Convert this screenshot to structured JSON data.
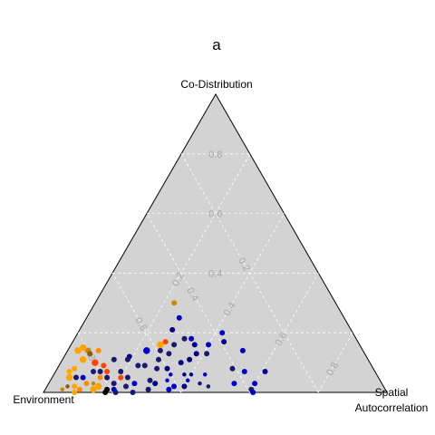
{
  "chart_data": {
    "type": "scatter",
    "subtype": "ternary",
    "title": "a",
    "vertex_labels": {
      "top": "Co-Distribution",
      "left": "Environment",
      "right_line1": "Spatial",
      "right_line2": "Autocorrelation"
    },
    "axes": {
      "co_distribution_ticks": [
        "0.4",
        "0.6",
        "0.8"
      ],
      "spatial_ticks": [
        "0.2",
        "0.4",
        "0.6",
        "0.8"
      ],
      "environment_ticks": [
        "0.2",
        "0.4",
        "0.6",
        "0.8"
      ],
      "range": [
        0,
        1
      ],
      "grid": true,
      "grid_step": 0.2,
      "background": "#d3d3d3"
    },
    "colors": {
      "background": "#d3d3d3",
      "grid": "#ffffff",
      "tick_text": "#a8a8a8",
      "series_palette": [
        "#ffa500",
        "#ff4500",
        "#b8860b",
        "#000000",
        "#00008b",
        "#0000cd",
        "#191970"
      ]
    },
    "points": [
      {
        "c": 0.3,
        "s": 0.23,
        "color": "#cd8500",
        "size": 4
      },
      {
        "c": 0.25,
        "s": 0.27,
        "color": "#0000cd",
        "size": 4
      },
      {
        "c": 0.21,
        "s": 0.27,
        "color": "#00008b",
        "size": 4
      },
      {
        "c": 0.2,
        "s": 0.42,
        "color": "#0000cd",
        "size": 4
      },
      {
        "c": 0.16,
        "s": 0.4,
        "color": "#0000cd",
        "size": 4
      },
      {
        "c": 0.17,
        "s": 0.44,
        "color": "#00008b",
        "size": 4
      },
      {
        "c": 0.14,
        "s": 0.51,
        "color": "#0000cd",
        "size": 4
      },
      {
        "c": 0.16,
        "s": 0.26,
        "color": "#ffa500",
        "size": 5
      },
      {
        "c": 0.18,
        "s": 0.32,
        "color": "#191970",
        "size": 4
      },
      {
        "c": 0.18,
        "s": 0.34,
        "color": "#0000cd",
        "size": 4
      },
      {
        "c": 0.17,
        "s": 0.27,
        "color": "#ff4500",
        "size": 4
      },
      {
        "c": 0.16,
        "s": 0.3,
        "color": "#191970",
        "size": 4
      },
      {
        "c": 0.16,
        "s": 0.36,
        "color": "#000080",
        "size": 4
      },
      {
        "c": 0.14,
        "s": 0.23,
        "color": "#0000cd",
        "size": 5
      },
      {
        "c": 0.14,
        "s": 0.27,
        "color": "#191970",
        "size": 4
      },
      {
        "c": 0.13,
        "s": 0.41,
        "color": "#191970",
        "size": 4
      },
      {
        "c": 0.13,
        "s": 0.3,
        "color": "#191970",
        "size": 4
      },
      {
        "c": 0.13,
        "s": 0.38,
        "color": "#000080",
        "size": 4
      },
      {
        "c": 0.12,
        "s": 0.19,
        "color": "#00008b",
        "size": 4
      },
      {
        "c": 0.15,
        "s": 0.04,
        "color": "#ffa500",
        "size": 5
      },
      {
        "c": 0.14,
        "s": 0.09,
        "color": "#ff8c00",
        "size": 4
      },
      {
        "c": 0.14,
        "s": 0.06,
        "color": "#cd8500",
        "size": 4
      },
      {
        "c": 0.13,
        "s": 0.07,
        "color": "#8b5a00",
        "size": 4
      },
      {
        "c": 0.14,
        "s": 0.03,
        "color": "#ffa500",
        "size": 5
      },
      {
        "c": 0.11,
        "s": 0.06,
        "color": "#ffa500",
        "size": 5
      },
      {
        "c": 0.1,
        "s": 0.1,
        "color": "#ff4500",
        "size": 5
      },
      {
        "c": 0.11,
        "s": 0.15,
        "color": "#191970",
        "size": 4
      },
      {
        "c": 0.11,
        "s": 0.19,
        "color": "#191970",
        "size": 4
      },
      {
        "c": 0.11,
        "s": 0.28,
        "color": "#191970",
        "size": 4
      },
      {
        "c": 0.11,
        "s": 0.37,
        "color": "#000080",
        "size": 4
      },
      {
        "c": 0.1,
        "s": 0.35,
        "color": "#00008b",
        "size": 4
      },
      {
        "c": 0.09,
        "s": 0.23,
        "color": "#191970",
        "size": 4
      },
      {
        "c": 0.09,
        "s": 0.25,
        "color": "#191970",
        "size": 4
      },
      {
        "c": 0.08,
        "s": 0.29,
        "color": "#191970",
        "size": 4
      },
      {
        "c": 0.08,
        "s": 0.32,
        "color": "#000080",
        "size": 4
      },
      {
        "c": 0.09,
        "s": 0.13,
        "color": "#ff4500",
        "size": 4
      },
      {
        "c": 0.08,
        "s": 0.05,
        "color": "#ffa500",
        "size": 4
      },
      {
        "c": 0.07,
        "s": 0.04,
        "color": "#ffa500",
        "size": 4
      },
      {
        "c": 0.07,
        "s": 0.11,
        "color": "#191970",
        "size": 4
      },
      {
        "c": 0.07,
        "s": 0.13,
        "color": "#191970",
        "size": 4
      },
      {
        "c": 0.07,
        "s": 0.15,
        "color": "#ff4500",
        "size": 4
      },
      {
        "c": 0.07,
        "s": 0.19,
        "color": "#191970",
        "size": 4
      },
      {
        "c": 0.07,
        "s": 0.55,
        "color": "#0000cd",
        "size": 4
      },
      {
        "c": 0.07,
        "s": 0.61,
        "color": "#00008b",
        "size": 4
      },
      {
        "c": 0.08,
        "s": 0.51,
        "color": "#191970",
        "size": 4
      },
      {
        "c": 0.06,
        "s": 0.44,
        "color": "#0000cd",
        "size": 3
      },
      {
        "c": 0.06,
        "s": 0.34,
        "color": "#0000cd",
        "size": 3
      },
      {
        "c": 0.06,
        "s": 0.38,
        "color": "#000080",
        "size": 3
      },
      {
        "c": 0.06,
        "s": 0.4,
        "color": "#00008b",
        "size": 3
      },
      {
        "c": 0.05,
        "s": 0.05,
        "color": "#ffa500",
        "size": 5
      },
      {
        "c": 0.05,
        "s": 0.07,
        "color": "#191970",
        "size": 4
      },
      {
        "c": 0.05,
        "s": 0.09,
        "color": "#0000cd",
        "size": 4
      },
      {
        "c": 0.05,
        "s": 0.14,
        "color": "#ff8c00",
        "size": 4
      },
      {
        "c": 0.05,
        "s": 0.16,
        "color": "#191970",
        "size": 4
      },
      {
        "c": 0.05,
        "s": 0.2,
        "color": "#ff4500",
        "size": 4
      },
      {
        "c": 0.05,
        "s": 0.22,
        "color": "#191970",
        "size": 4
      },
      {
        "c": 0.04,
        "s": 0.29,
        "color": "#191970",
        "size": 4
      },
      {
        "c": 0.04,
        "s": 0.34,
        "color": "#0000cd",
        "size": 3
      },
      {
        "c": 0.04,
        "s": 0.4,
        "color": "#0000cd",
        "size": 3
      },
      {
        "c": 0.03,
        "s": 0.11,
        "color": "#ff8c00",
        "size": 4
      },
      {
        "c": 0.03,
        "s": 0.13,
        "color": "#cd8500",
        "size": 3
      },
      {
        "c": 0.03,
        "s": 0.19,
        "color": "#191970",
        "size": 4
      },
      {
        "c": 0.03,
        "s": 0.25,
        "color": "#0000cd",
        "size": 4
      },
      {
        "c": 0.03,
        "s": 0.31,
        "color": "#00008b",
        "size": 4
      },
      {
        "c": 0.03,
        "s": 0.44,
        "color": "#191970",
        "size": 3
      },
      {
        "c": 0.03,
        "s": 0.54,
        "color": "#0000cd",
        "size": 4
      },
      {
        "c": 0.03,
        "s": 0.6,
        "color": "#0000cd",
        "size": 4
      },
      {
        "c": 0.02,
        "s": 0.06,
        "color": "#8b5a00",
        "size": 3
      },
      {
        "c": 0.02,
        "s": 0.08,
        "color": "#ffa500",
        "size": 4
      },
      {
        "c": 0.02,
        "s": 0.15,
        "color": "#ffa500",
        "size": 5
      },
      {
        "c": 0.02,
        "s": 0.23,
        "color": "#191970",
        "size": 4
      },
      {
        "c": 0.02,
        "s": 0.37,
        "color": "#0000cd",
        "size": 4
      },
      {
        "c": 0.02,
        "s": 0.4,
        "color": "#00008b",
        "size": 4
      },
      {
        "c": 0.02,
        "s": 0.47,
        "color": "#191970",
        "size": 3
      },
      {
        "c": 0.01,
        "s": 0.05,
        "color": "#cd8500",
        "size": 3
      },
      {
        "c": 0.01,
        "s": 0.1,
        "color": "#ff8c00",
        "size": 4
      },
      {
        "c": 0.01,
        "s": 0.14,
        "color": "#ffa500",
        "size": 5
      },
      {
        "c": 0.01,
        "s": 0.18,
        "color": "#000000",
        "size": 4
      },
      {
        "c": 0.01,
        "s": 0.2,
        "color": "#0000cd",
        "size": 4
      },
      {
        "c": 0.01,
        "s": 0.3,
        "color": "#191970",
        "size": 4
      },
      {
        "c": 0.01,
        "s": 0.36,
        "color": "#0000cd",
        "size": 4
      },
      {
        "c": 0.01,
        "s": 0.6,
        "color": "#191970",
        "size": 4
      },
      {
        "c": 0.0,
        "s": 0.09,
        "color": "#ffa500",
        "size": 4
      },
      {
        "c": 0.0,
        "s": 0.18,
        "color": "#000000",
        "size": 4
      },
      {
        "c": 0.0,
        "s": 0.21,
        "color": "#191970",
        "size": 4
      },
      {
        "c": 0.0,
        "s": 0.26,
        "color": "#191970",
        "size": 4
      },
      {
        "c": 0.0,
        "s": 0.61,
        "color": "#0000cd",
        "size": 4
      }
    ]
  }
}
